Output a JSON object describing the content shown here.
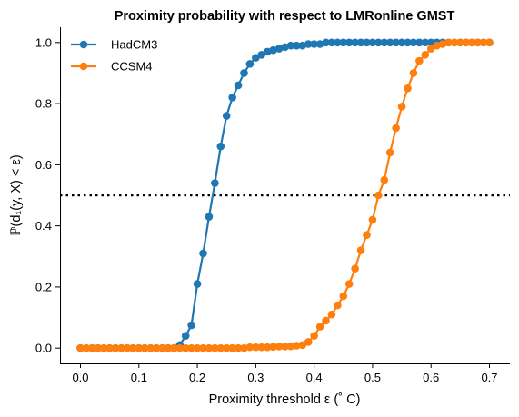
{
  "chart_data": {
    "type": "line",
    "title": "Proximity probability with respect to LMRonline GMST",
    "xlabel": "Proximity threshold ε (˚ C)",
    "ylabel": "ℙ(d₁(y, X) < ε)",
    "xlim": [
      -0.035,
      0.735
    ],
    "ylim": [
      -0.05,
      1.05
    ],
    "xticks": [
      0.0,
      0.1,
      0.2,
      0.3,
      0.4,
      0.5,
      0.6,
      0.7
    ],
    "xtick_labels": [
      "0.0",
      "0.1",
      "0.2",
      "0.3",
      "0.4",
      "0.5",
      "0.6",
      "0.7"
    ],
    "yticks": [
      0.0,
      0.2,
      0.4,
      0.6,
      0.8,
      1.0
    ],
    "ytick_labels": [
      "0.0",
      "0.2",
      "0.4",
      "0.6",
      "0.8",
      "1.0"
    ],
    "grid": false,
    "legend_position": "top-left",
    "reference_line": {
      "y": 0.5,
      "style": "dotted",
      "color": "#000000"
    },
    "series": [
      {
        "name": "HadCM3",
        "color": "#1f77b4",
        "x": [
          0.0,
          0.01,
          0.02,
          0.03,
          0.04,
          0.05,
          0.06,
          0.07,
          0.08,
          0.09,
          0.1,
          0.11,
          0.12,
          0.13,
          0.14,
          0.15,
          0.16,
          0.17,
          0.18,
          0.19,
          0.2,
          0.21,
          0.22,
          0.23,
          0.24,
          0.25,
          0.26,
          0.27,
          0.28,
          0.29,
          0.3,
          0.31,
          0.32,
          0.33,
          0.34,
          0.35,
          0.36,
          0.37,
          0.38,
          0.39,
          0.4,
          0.41,
          0.42,
          0.43,
          0.44,
          0.45,
          0.46,
          0.47,
          0.48,
          0.49,
          0.5,
          0.51,
          0.52,
          0.53,
          0.54,
          0.55,
          0.56,
          0.57,
          0.58,
          0.59,
          0.6,
          0.61,
          0.62,
          0.63,
          0.64,
          0.65,
          0.66,
          0.67,
          0.68,
          0.69,
          0.7
        ],
        "y": [
          0,
          0,
          0,
          0,
          0,
          0,
          0,
          0,
          0,
          0,
          0,
          0,
          0,
          0,
          0,
          0,
          0,
          0.01,
          0.04,
          0.075,
          0.21,
          0.31,
          0.43,
          0.54,
          0.66,
          0.76,
          0.82,
          0.86,
          0.9,
          0.93,
          0.95,
          0.96,
          0.97,
          0.975,
          0.98,
          0.985,
          0.99,
          0.99,
          0.99,
          0.995,
          0.995,
          0.995,
          1,
          1,
          1,
          1,
          1,
          1,
          1,
          1,
          1,
          1,
          1,
          1,
          1,
          1,
          1,
          1,
          1,
          1,
          1,
          1,
          1,
          1,
          1,
          1,
          1,
          1,
          1,
          1,
          1
        ]
      },
      {
        "name": "CCSM4",
        "color": "#ff7f0e",
        "x": [
          0.0,
          0.01,
          0.02,
          0.03,
          0.04,
          0.05,
          0.06,
          0.07,
          0.08,
          0.09,
          0.1,
          0.11,
          0.12,
          0.13,
          0.14,
          0.15,
          0.16,
          0.17,
          0.18,
          0.19,
          0.2,
          0.21,
          0.22,
          0.23,
          0.24,
          0.25,
          0.26,
          0.27,
          0.28,
          0.29,
          0.3,
          0.31,
          0.32,
          0.33,
          0.34,
          0.35,
          0.36,
          0.37,
          0.38,
          0.39,
          0.4,
          0.41,
          0.42,
          0.43,
          0.44,
          0.45,
          0.46,
          0.47,
          0.48,
          0.49,
          0.5,
          0.51,
          0.52,
          0.53,
          0.54,
          0.55,
          0.56,
          0.57,
          0.58,
          0.59,
          0.6,
          0.61,
          0.62,
          0.63,
          0.64,
          0.65,
          0.66,
          0.67,
          0.68,
          0.69,
          0.7
        ],
        "y": [
          0,
          0,
          0,
          0,
          0,
          0,
          0,
          0,
          0,
          0,
          0,
          0,
          0,
          0,
          0,
          0,
          0,
          0,
          0,
          0,
          0,
          0,
          0,
          0,
          0,
          0,
          0,
          0,
          0,
          0.003,
          0.003,
          0.003,
          0.003,
          0.004,
          0.005,
          0.005,
          0.006,
          0.008,
          0.01,
          0.02,
          0.04,
          0.07,
          0.09,
          0.11,
          0.14,
          0.17,
          0.21,
          0.26,
          0.32,
          0.37,
          0.42,
          0.5,
          0.55,
          0.64,
          0.72,
          0.79,
          0.85,
          0.9,
          0.94,
          0.96,
          0.98,
          0.99,
          0.995,
          1,
          1,
          1,
          1,
          1,
          1,
          1,
          1
        ]
      }
    ]
  }
}
